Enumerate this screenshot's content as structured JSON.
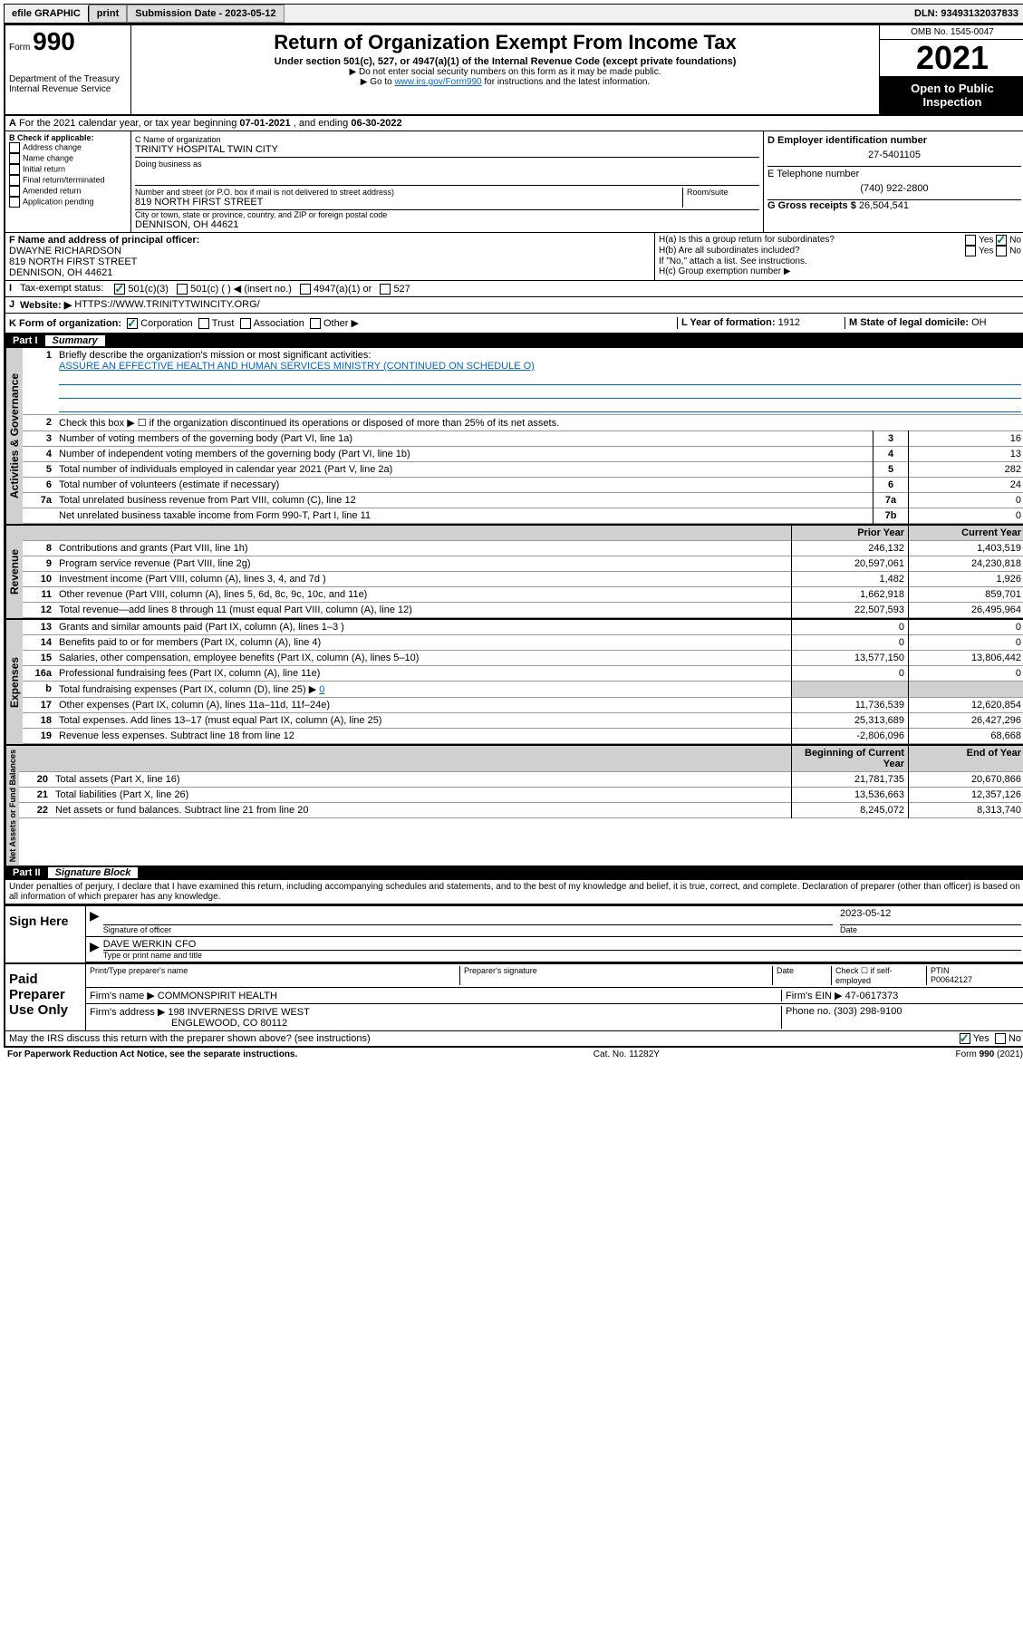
{
  "topbar": {
    "efile": "efile GRAPHIC",
    "print": "print",
    "sub_date_label": "Submission Date - 2023-05-12",
    "dln": "DLN: 93493132037833"
  },
  "header": {
    "form_prefix": "Form",
    "form_number": "990",
    "dept": "Department of the Treasury",
    "irs": "Internal Revenue Service",
    "title": "Return of Organization Exempt From Income Tax",
    "sub": "Under section 501(c), 527, or 4947(a)(1) of the Internal Revenue Code (except private foundations)",
    "note1": "▶ Do not enter social security numbers on this form as it may be made public.",
    "note2_pre": "▶ Go to ",
    "note2_link": "www.irs.gov/Form990",
    "note2_post": " for instructions and the latest information.",
    "omb": "OMB No. 1545-0047",
    "year": "2021",
    "open": "Open to Public Inspection"
  },
  "rowA": {
    "text_pre": "For the 2021 calendar year, or tax year beginning ",
    "begin": "07-01-2021",
    "mid": " , and ending ",
    "end": "06-30-2022"
  },
  "boxB": {
    "title": "B Check if applicable:",
    "opts": [
      "Address change",
      "Name change",
      "Initial return",
      "Final return/terminated",
      "Amended return",
      "Application pending"
    ]
  },
  "boxC": {
    "name_label": "C Name of organization",
    "name": "TRINITY HOSPITAL TWIN CITY",
    "dba_label": "Doing business as",
    "dba": "",
    "addr_label": "Number and street (or P.O. box if mail is not delivered to street address)",
    "room_label": "Room/suite",
    "addr": "819 NORTH FIRST STREET",
    "city_label": "City or town, state or province, country, and ZIP or foreign postal code",
    "city": "DENNISON, OH  44621"
  },
  "boxD": {
    "label": "D Employer identification number",
    "value": "27-5401105"
  },
  "boxE": {
    "label": "E Telephone number",
    "value": "(740) 922-2800"
  },
  "boxG": {
    "label": "G Gross receipts $",
    "value": "26,504,541"
  },
  "boxF": {
    "label": "F Name and address of principal officer:",
    "name": "DWAYNE RICHARDSON",
    "addr1": "819 NORTH FIRST STREET",
    "addr2": "DENNISON, OH  44621"
  },
  "boxH": {
    "a_label": "H(a) Is this a group return for subordinates?",
    "a_yes": "Yes",
    "a_no": "No",
    "b_label": "H(b) Are all subordinates included?",
    "b_yes": "Yes",
    "b_no": "No",
    "note": "If \"No,\" attach a list. See instructions.",
    "c_label": "H(c) Group exemption number ▶"
  },
  "boxI": {
    "label": "Tax-exempt status:",
    "opt1": "501(c)(3)",
    "opt2": "501(c) (  ) ◀ (insert no.)",
    "opt3": "4947(a)(1) or",
    "opt4": "527"
  },
  "boxJ": {
    "label": "Website: ▶",
    "value": "HTTPS://WWW.TRINITYTWINCITY.ORG/"
  },
  "boxK": {
    "label": "K Form of organization:",
    "opts": [
      "Corporation",
      "Trust",
      "Association",
      "Other ▶"
    ]
  },
  "boxL": {
    "label": "L Year of formation:",
    "value": "1912"
  },
  "boxM": {
    "label": "M State of legal domicile:",
    "value": "OH"
  },
  "part1": {
    "label": "Part I",
    "title": "Summary"
  },
  "gov": {
    "vlabel": "Activities & Governance",
    "l1": "Briefly describe the organization's mission or most significant activities:",
    "l1v": "ASSURE AN EFFECTIVE HEALTH AND HUMAN SERVICES MINISTRY (CONTINUED ON SCHEDULE O)",
    "l2": "Check this box ▶ ☐ if the organization discontinued its operations or disposed of more than 25% of its net assets.",
    "l3": "Number of voting members of the governing body (Part VI, line 1a)",
    "l3v": "16",
    "l4": "Number of independent voting members of the governing body (Part VI, line 1b)",
    "l4v": "13",
    "l5": "Total number of individuals employed in calendar year 2021 (Part V, line 2a)",
    "l5v": "282",
    "l6": "Total number of volunteers (estimate if necessary)",
    "l6v": "24",
    "l7a": "Total unrelated business revenue from Part VIII, column (C), line 12",
    "l7av": "0",
    "l7b": "Net unrelated business taxable income from Form 990-T, Part I, line 11",
    "l7bv": "0"
  },
  "rev": {
    "vlabel": "Revenue",
    "prior": "Prior Year",
    "current": "Current Year",
    "rows": [
      {
        "n": "8",
        "t": "Contributions and grants (Part VIII, line 1h)",
        "p": "246,132",
        "c": "1,403,519"
      },
      {
        "n": "9",
        "t": "Program service revenue (Part VIII, line 2g)",
        "p": "20,597,061",
        "c": "24,230,818"
      },
      {
        "n": "10",
        "t": "Investment income (Part VIII, column (A), lines 3, 4, and 7d )",
        "p": "1,482",
        "c": "1,926"
      },
      {
        "n": "11",
        "t": "Other revenue (Part VIII, column (A), lines 5, 6d, 8c, 9c, 10c, and 11e)",
        "p": "1,662,918",
        "c": "859,701"
      },
      {
        "n": "12",
        "t": "Total revenue—add lines 8 through 11 (must equal Part VIII, column (A), line 12)",
        "p": "22,507,593",
        "c": "26,495,964"
      }
    ]
  },
  "exp": {
    "vlabel": "Expenses",
    "rows": [
      {
        "n": "13",
        "t": "Grants and similar amounts paid (Part IX, column (A), lines 1–3 )",
        "p": "0",
        "c": "0"
      },
      {
        "n": "14",
        "t": "Benefits paid to or for members (Part IX, column (A), line 4)",
        "p": "0",
        "c": "0"
      },
      {
        "n": "15",
        "t": "Salaries, other compensation, employee benefits (Part IX, column (A), lines 5–10)",
        "p": "13,577,150",
        "c": "13,806,442"
      },
      {
        "n": "16a",
        "t": "Professional fundraising fees (Part IX, column (A), line 11e)",
        "p": "0",
        "c": "0"
      }
    ],
    "l16b_pre": "Total fundraising expenses (Part IX, column (D), line 25) ▶",
    "l16b_val": "0",
    "rows2": [
      {
        "n": "17",
        "t": "Other expenses (Part IX, column (A), lines 11a–11d, 11f–24e)",
        "p": "11,736,539",
        "c": "12,620,854"
      },
      {
        "n": "18",
        "t": "Total expenses. Add lines 13–17 (must equal Part IX, column (A), line 25)",
        "p": "25,313,689",
        "c": "26,427,296"
      },
      {
        "n": "19",
        "t": "Revenue less expenses. Subtract line 18 from line 12",
        "p": "-2,806,096",
        "c": "68,668"
      }
    ]
  },
  "net": {
    "vlabel": "Net Assets or Fund Balances",
    "begin": "Beginning of Current Year",
    "end": "End of Year",
    "rows": [
      {
        "n": "20",
        "t": "Total assets (Part X, line 16)",
        "p": "21,781,735",
        "c": "20,670,866"
      },
      {
        "n": "21",
        "t": "Total liabilities (Part X, line 26)",
        "p": "13,536,663",
        "c": "12,357,126"
      },
      {
        "n": "22",
        "t": "Net assets or fund balances. Subtract line 21 from line 20",
        "p": "8,245,072",
        "c": "8,313,740"
      }
    ]
  },
  "part2": {
    "label": "Part II",
    "title": "Signature Block"
  },
  "penalty": "Under penalties of perjury, I declare that I have examined this return, including accompanying schedules and statements, and to the best of my knowledge and belief, it is true, correct, and complete. Declaration of preparer (other than officer) is based on all information of which preparer has any knowledge.",
  "sign": {
    "label": "Sign Here",
    "sig_label": "Signature of officer",
    "date_label": "Date",
    "date": "2023-05-12",
    "name": "DAVE WERKIN  CFO",
    "name_label": "Type or print name and title"
  },
  "paid": {
    "label": "Paid Preparer Use Only",
    "c1": "Print/Type preparer's name",
    "c2": "Preparer's signature",
    "c3": "Date",
    "c4_pre": "Check ☐ if self-employed",
    "c5": "PTIN",
    "ptin": "P00642127",
    "firm_label": "Firm's name ▶",
    "firm": "COMMONSPIRIT HEALTH",
    "ein_label": "Firm's EIN ▶",
    "ein": "47-0617373",
    "addr_label": "Firm's address ▶",
    "addr1": "198 INVERNESS DRIVE WEST",
    "addr2": "ENGLEWOOD, CO  80112",
    "phone_label": "Phone no.",
    "phone": "(303) 298-9100"
  },
  "discuss": {
    "text": "May the IRS discuss this return with the preparer shown above? (see instructions)",
    "yes": "Yes",
    "no": "No"
  },
  "footer": {
    "left": "For Paperwork Reduction Act Notice, see the separate instructions.",
    "mid": "Cat. No. 11282Y",
    "right_pre": "Form ",
    "right_b": "990",
    "right_post": " (2021)"
  }
}
